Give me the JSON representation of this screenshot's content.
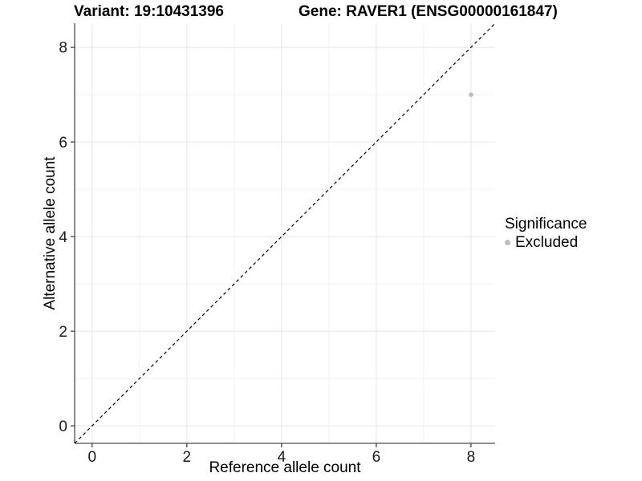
{
  "chart_data": {
    "type": "scatter",
    "title_left": "Variant: 19:10431396",
    "title_right": "Gene: RAVER1 (ENSG00000161847)",
    "xlabel": "Reference allele count",
    "ylabel": "Alternative allele count",
    "xlim": [
      -0.37,
      8.51
    ],
    "ylim": [
      -0.37,
      8.51
    ],
    "x_ticks": [
      0,
      2,
      4,
      6,
      8
    ],
    "y_ticks": [
      0,
      2,
      4,
      6,
      8
    ],
    "x_minor_ticks": [
      1,
      3,
      5,
      7
    ],
    "y_minor_ticks": [
      1,
      3,
      5,
      7
    ],
    "grid": true,
    "identity_line": {
      "style": "dashed",
      "color": "#000000",
      "slope": 1,
      "intercept": 0
    },
    "points": [
      {
        "x": 8,
        "y": 7,
        "series": "Excluded"
      }
    ],
    "legend": {
      "title": "Significance",
      "position": "right",
      "items": [
        {
          "label": "Excluded",
          "color": "#bdbdbd"
        }
      ]
    },
    "colors": {
      "point": "#bdbdbd",
      "grid_major": "#e7e7e7",
      "grid_minor": "#f2f2f2",
      "axis": "#4d4d4d",
      "tick": "#333333"
    }
  }
}
